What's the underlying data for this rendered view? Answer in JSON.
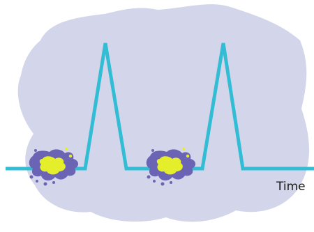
{
  "labels": {
    "time": "Time"
  },
  "colors": {
    "background_blob": "#d3d5ea",
    "signal_line": "#33bdd5",
    "splat_outer": "#6b64b5",
    "splat_inner": "#e5ee2a"
  }
}
